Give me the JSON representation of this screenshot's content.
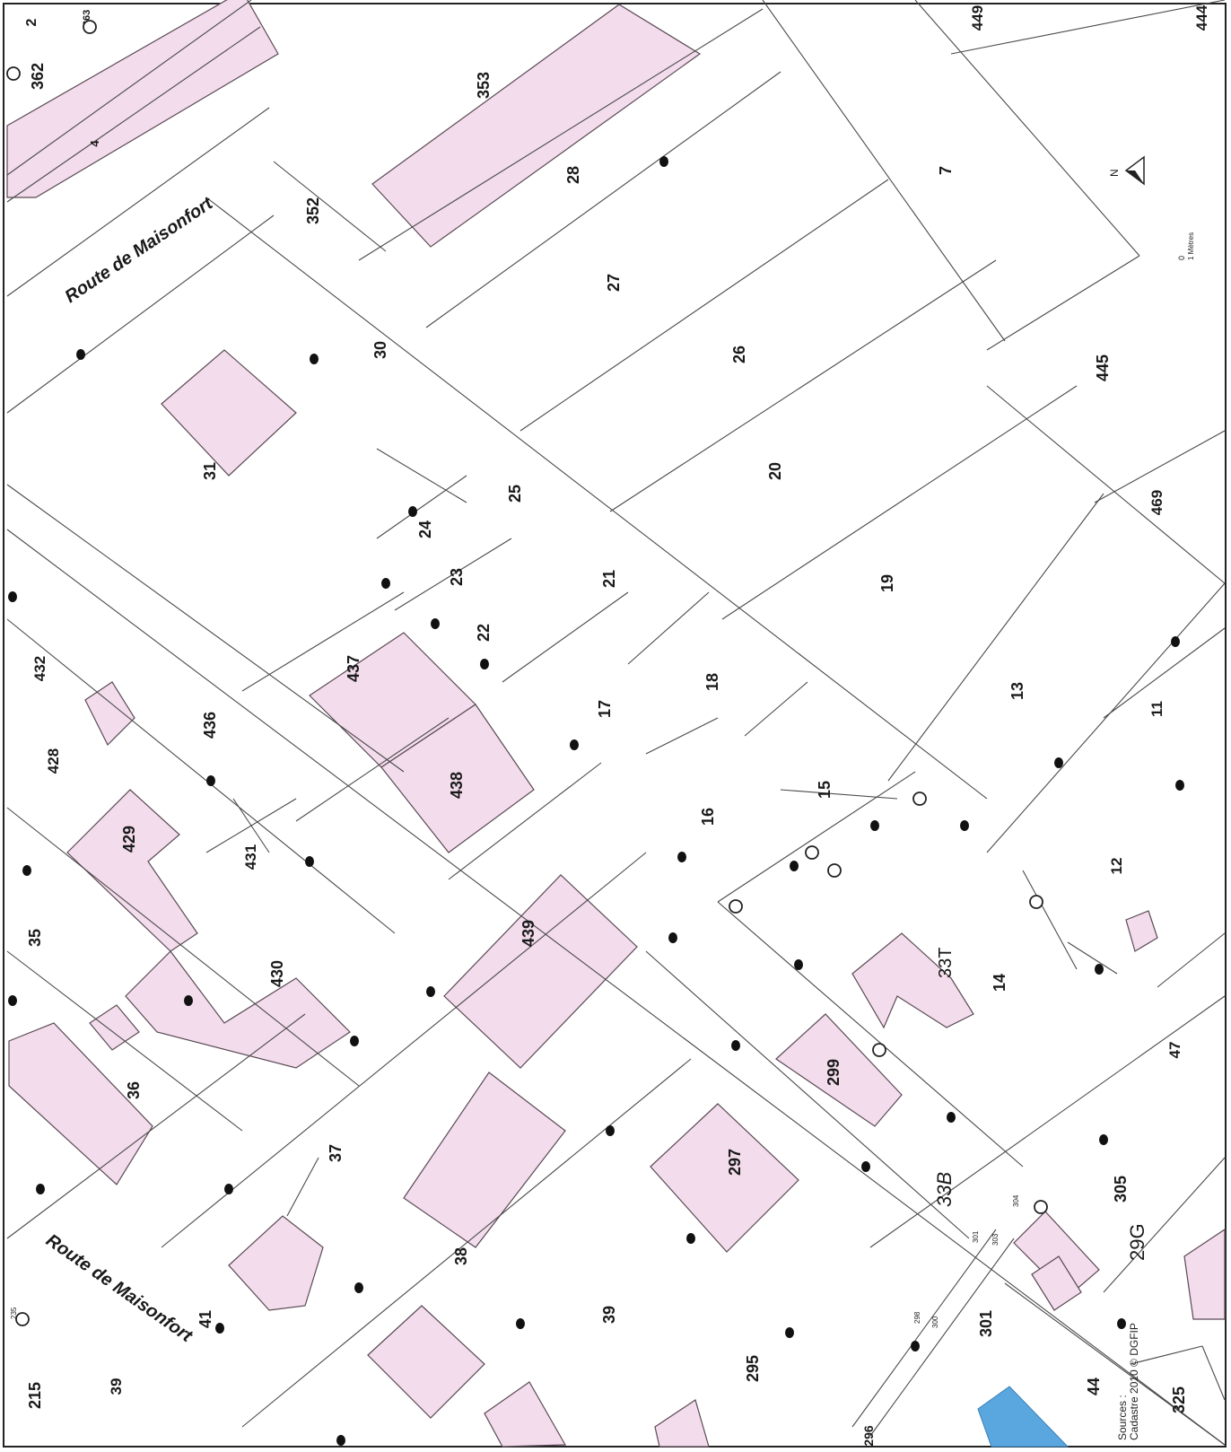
{
  "colors": {
    "building_fill": "#f3dcec",
    "water_fill": "#5aa7e0",
    "parcel_line": "#4a4a4a",
    "frame": "#222222"
  },
  "map": {
    "road_labels": [
      "Route de Maisonfort",
      "Route de Maisonfort"
    ],
    "north_letter": "N",
    "scale": {
      "zero": "0",
      "unit": "1 Mètres"
    },
    "sources": {
      "label": "Sources :",
      "text": "Cadastre 2010 © DGFIP"
    },
    "section_labels": [
      "33T",
      "33B",
      "29G"
    ],
    "parcels": [
      "2",
      "363",
      "362",
      "4",
      "353",
      "449",
      "444",
      "28",
      "7",
      "352",
      "27",
      "26",
      "30",
      "31",
      "445",
      "25",
      "20",
      "469",
      "24",
      "23",
      "21",
      "22",
      "19",
      "432",
      "437",
      "18",
      "17",
      "13",
      "11",
      "428",
      "436",
      "438",
      "15",
      "16",
      "429",
      "431",
      "12",
      "35",
      "439",
      "430",
      "14",
      "36",
      "47",
      "299",
      "37",
      "297",
      "305",
      "38",
      "41",
      "39",
      "301",
      "295",
      "44",
      "325",
      "215",
      "39",
      "296"
    ],
    "small_numbers": [
      "304",
      "301",
      "303",
      "298",
      "300",
      "235"
    ]
  }
}
